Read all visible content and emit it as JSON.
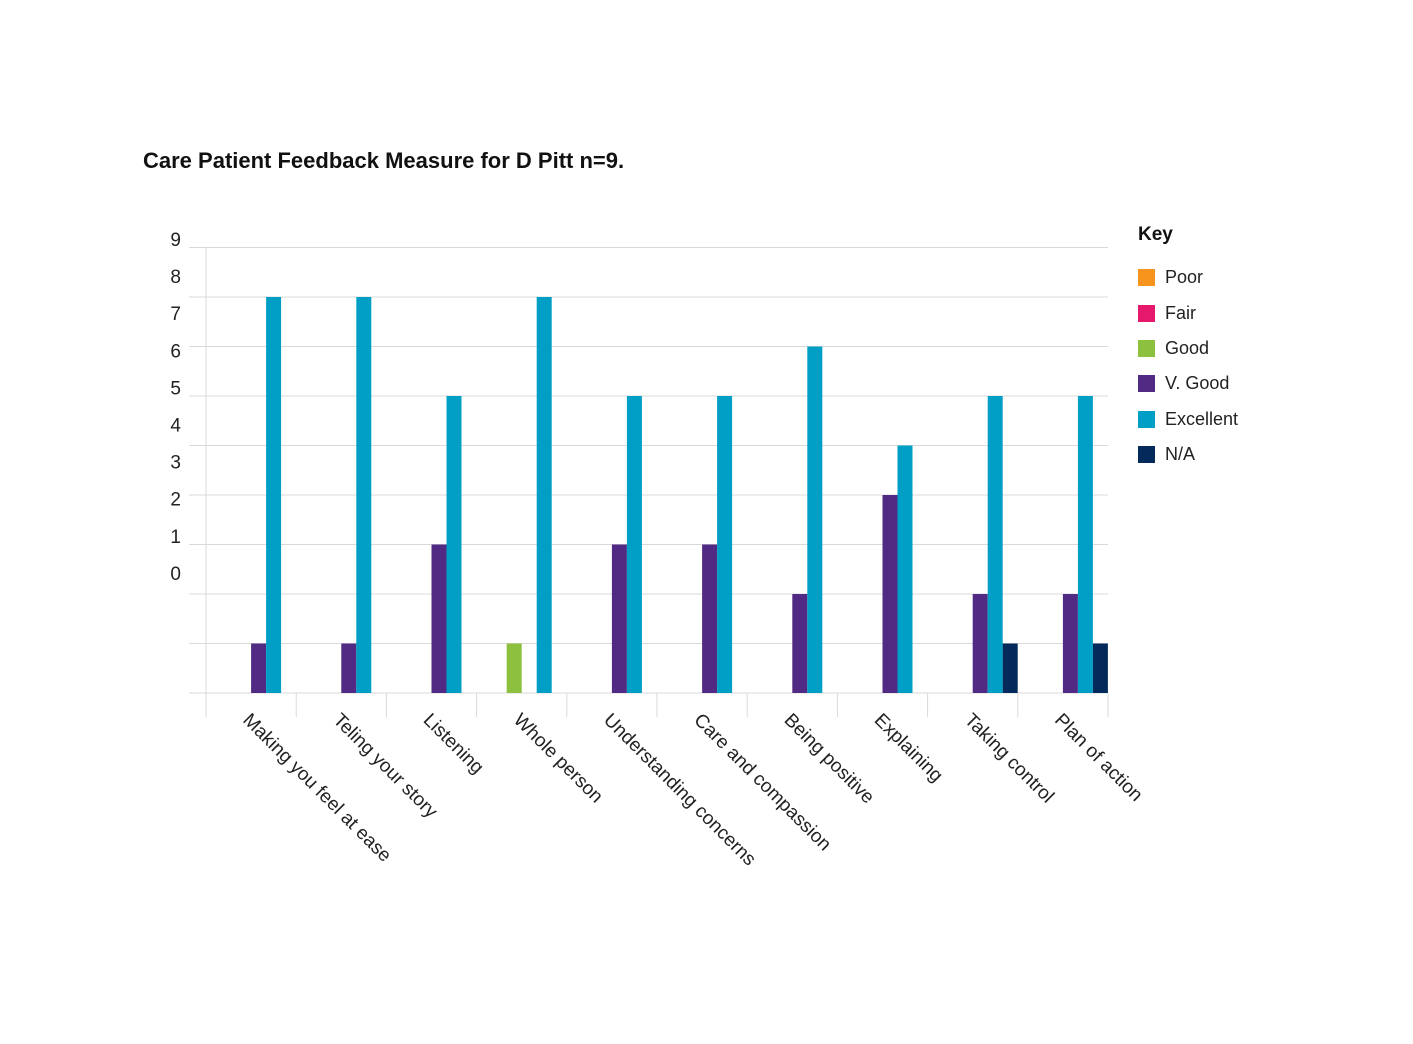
{
  "chart_data": {
    "type": "bar",
    "title": "Care Patient Feedback Measure for D Pitt n=9.",
    "xlabel": "",
    "ylabel": "",
    "ylim": [
      0,
      9
    ],
    "yticks": [
      "9",
      "8",
      "7",
      "6",
      "5",
      "4",
      "3",
      "2",
      "1",
      "0"
    ],
    "grid": true,
    "legend_title": "Key",
    "legend_position": "right",
    "categories": [
      "Making you feel at ease",
      "Teling your story",
      "Listening",
      "Whole person",
      "Understanding concerns",
      "Care and compassion",
      "Being positive",
      "Explaining",
      "Taking control",
      "Plan of action"
    ],
    "series": [
      {
        "name": "Poor",
        "color": "#f7941d",
        "values": [
          0,
          0,
          0,
          0,
          0,
          0,
          0,
          0,
          0,
          0
        ]
      },
      {
        "name": "Fair",
        "color": "#e6186b",
        "values": [
          0,
          0,
          0,
          0,
          0,
          0,
          0,
          0,
          0,
          0
        ]
      },
      {
        "name": "Good",
        "color": "#8dc03f",
        "values": [
          0,
          0,
          0,
          1,
          0,
          0,
          0,
          0,
          0,
          0
        ]
      },
      {
        "name": "V. Good",
        "color": "#512a83",
        "values": [
          1,
          1,
          3,
          0,
          3,
          3,
          2,
          4,
          2,
          2
        ]
      },
      {
        "name": "Excellent",
        "color": "#019fc6",
        "values": [
          8,
          8,
          6,
          8,
          6,
          6,
          7,
          5,
          6,
          6
        ]
      },
      {
        "name": "N/A",
        "color": "#032a5b",
        "values": [
          0,
          0,
          0,
          0,
          0,
          0,
          0,
          0,
          1,
          1
        ]
      }
    ]
  }
}
